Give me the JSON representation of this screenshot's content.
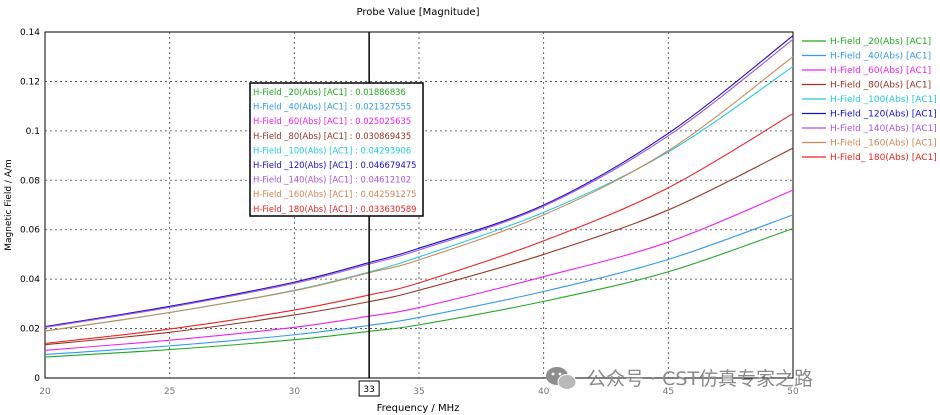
{
  "chart_data": {
    "type": "line",
    "title": "Probe Value [Magnitude]",
    "xlabel": "Frequency / MHz",
    "ylabel": "Magnetic Field / A/m",
    "xlim": [
      20,
      50
    ],
    "ylim": [
      0,
      0.14
    ],
    "x_ticks": [
      "20",
      "25",
      "30",
      "35",
      "40",
      "45",
      "50"
    ],
    "y_ticks": [
      "0",
      "0.02",
      "0.04",
      "0.06",
      "0.08",
      "0.1",
      "0.12",
      "0.14"
    ],
    "grid": true,
    "legend_position": "right",
    "marker": {
      "x": 33,
      "label": "33"
    },
    "series": [
      {
        "name": "H-Field _20(Abs) [AC1]",
        "color": "#22aa22",
        "readout": "0.01886836",
        "x": [
          20,
          25,
          30,
          33,
          35,
          40,
          45,
          50
        ],
        "values": [
          0.0085,
          0.0115,
          0.0155,
          0.0189,
          0.0215,
          0.031,
          0.043,
          0.0605
        ]
      },
      {
        "name": "H-Field _40(Abs) [AC1]",
        "color": "#3399ee",
        "readout": "0.021327555",
        "x": [
          20,
          25,
          30,
          33,
          35,
          40,
          45,
          50
        ],
        "values": [
          0.0095,
          0.013,
          0.0175,
          0.0213,
          0.0245,
          0.035,
          0.048,
          0.066
        ]
      },
      {
        "name": "H-Field _60(Abs) [AC1]",
        "color": "#ee22ee",
        "readout": "0.025025635",
        "x": [
          20,
          25,
          30,
          33,
          35,
          40,
          45,
          50
        ],
        "values": [
          0.0112,
          0.0153,
          0.0205,
          0.025,
          0.0285,
          0.041,
          0.055,
          0.076
        ]
      },
      {
        "name": "H-Field _80(Abs) [AC1]",
        "color": "#993322",
        "readout": "0.030869435",
        "x": [
          20,
          25,
          30,
          33,
          35,
          40,
          45,
          50
        ],
        "values": [
          0.0135,
          0.0185,
          0.0255,
          0.0309,
          0.0355,
          0.05,
          0.068,
          0.093
        ]
      },
      {
        "name": "H-Field _100(Abs) [AC1]",
        "color": "#22ccdd",
        "readout": "0.04293906",
        "x": [
          20,
          25,
          30,
          33,
          35,
          40,
          45,
          50
        ],
        "values": [
          0.019,
          0.0265,
          0.0355,
          0.0429,
          0.049,
          0.067,
          0.0915,
          0.126
        ]
      },
      {
        "name": "H-Field _120(Abs) [AC1]",
        "color": "#1111cc",
        "readout": "0.046679475",
        "x": [
          20,
          25,
          30,
          33,
          35,
          40,
          45,
          50
        ],
        "values": [
          0.0208,
          0.029,
          0.0388,
          0.0467,
          0.0525,
          0.07,
          0.099,
          0.1385
        ]
      },
      {
        "name": "H-Field _140(Abs) [AC1]",
        "color": "#aa55dd",
        "readout": "0.04612102",
        "x": [
          20,
          25,
          30,
          33,
          35,
          40,
          45,
          50
        ],
        "values": [
          0.0205,
          0.0286,
          0.0383,
          0.0461,
          0.0518,
          0.0695,
          0.098,
          0.137
        ]
      },
      {
        "name": "H-Field _160(Abs) [AC1]",
        "color": "#cc8855",
        "readout": "0.042591275",
        "x": [
          20,
          25,
          30,
          33,
          35,
          40,
          45,
          50
        ],
        "values": [
          0.019,
          0.0265,
          0.0353,
          0.0426,
          0.0478,
          0.066,
          0.092,
          0.13
        ]
      },
      {
        "name": "H-Field_ 180(Abs) [AC1]",
        "color": "#ee2222",
        "readout": "0.033630589",
        "x": [
          20,
          25,
          30,
          33,
          35,
          40,
          45,
          50
        ],
        "values": [
          0.014,
          0.0198,
          0.0275,
          0.0336,
          0.0385,
          0.0555,
          0.077,
          0.107
        ]
      }
    ]
  },
  "watermark": {
    "text": "公众号 · CST仿真专家之路",
    "icon": "wechat-icon"
  }
}
